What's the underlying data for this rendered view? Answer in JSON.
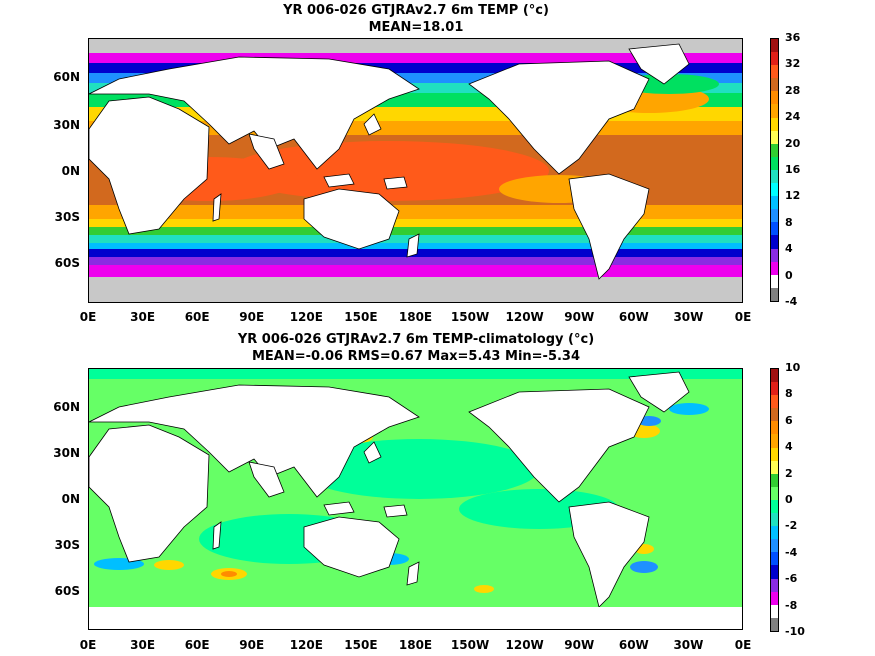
{
  "panels": [
    {
      "title_line1": "YR 006-026 GTJRAv2.7 6m TEMP (°c)",
      "title_line2": "MEAN=18.01",
      "field": "temperature",
      "colorbar": {
        "labels": [
          "36",
          "32",
          "28",
          "24",
          "20",
          "16",
          "12",
          "8",
          "4",
          "0",
          "-4"
        ],
        "colors": [
          "#a01010",
          "#e02018",
          "#ff5a1a",
          "#d2691e",
          "#ff8c00",
          "#ffa500",
          "#ffd700",
          "#ffff55",
          "#32cd32",
          "#00e060",
          "#20e0c0",
          "#00ffff",
          "#00bfff",
          "#1e90ff",
          "#0050ff",
          "#0000cd",
          "#8a2be2",
          "#ee00ee",
          "#ffffff",
          "#808080"
        ]
      },
      "lat_ticks": [
        "60N",
        "30N",
        "0N",
        "30S",
        "60S"
      ],
      "lon_ticks": [
        "0E",
        "30E",
        "60E",
        "90E",
        "120E",
        "150E",
        "180E",
        "150W",
        "120W",
        "90W",
        "60W",
        "30W",
        "0E"
      ]
    },
    {
      "title_line1": "YR 006-026 GTJRAv2.7 6m TEMP-climatology (°c)",
      "title_line2": "MEAN=-0.06   RMS=0.67   Max=5.43   Min=-5.34",
      "field": "anomaly",
      "colorbar": {
        "labels": [
          "10",
          "8",
          "6",
          "4",
          "2",
          "0",
          "-2",
          "-4",
          "-6",
          "-8",
          "-10"
        ],
        "colors": [
          "#a01010",
          "#e02018",
          "#ff5a1a",
          "#d2691e",
          "#ff8c00",
          "#ffa500",
          "#ffd700",
          "#ffff55",
          "#32cd32",
          "#66ff66",
          "#00ff99",
          "#20e0c0",
          "#00bfff",
          "#1e90ff",
          "#0050ff",
          "#0000cd",
          "#8a2be2",
          "#ee00ee",
          "#ffffff",
          "#808080"
        ]
      },
      "lat_ticks": [
        "60N",
        "30N",
        "0N",
        "30S",
        "60S"
      ],
      "lon_ticks": [
        "0E",
        "30E",
        "60E",
        "90E",
        "120E",
        "150E",
        "180E",
        "150W",
        "120W",
        "90W",
        "60W",
        "30W",
        "0E"
      ]
    }
  ]
}
